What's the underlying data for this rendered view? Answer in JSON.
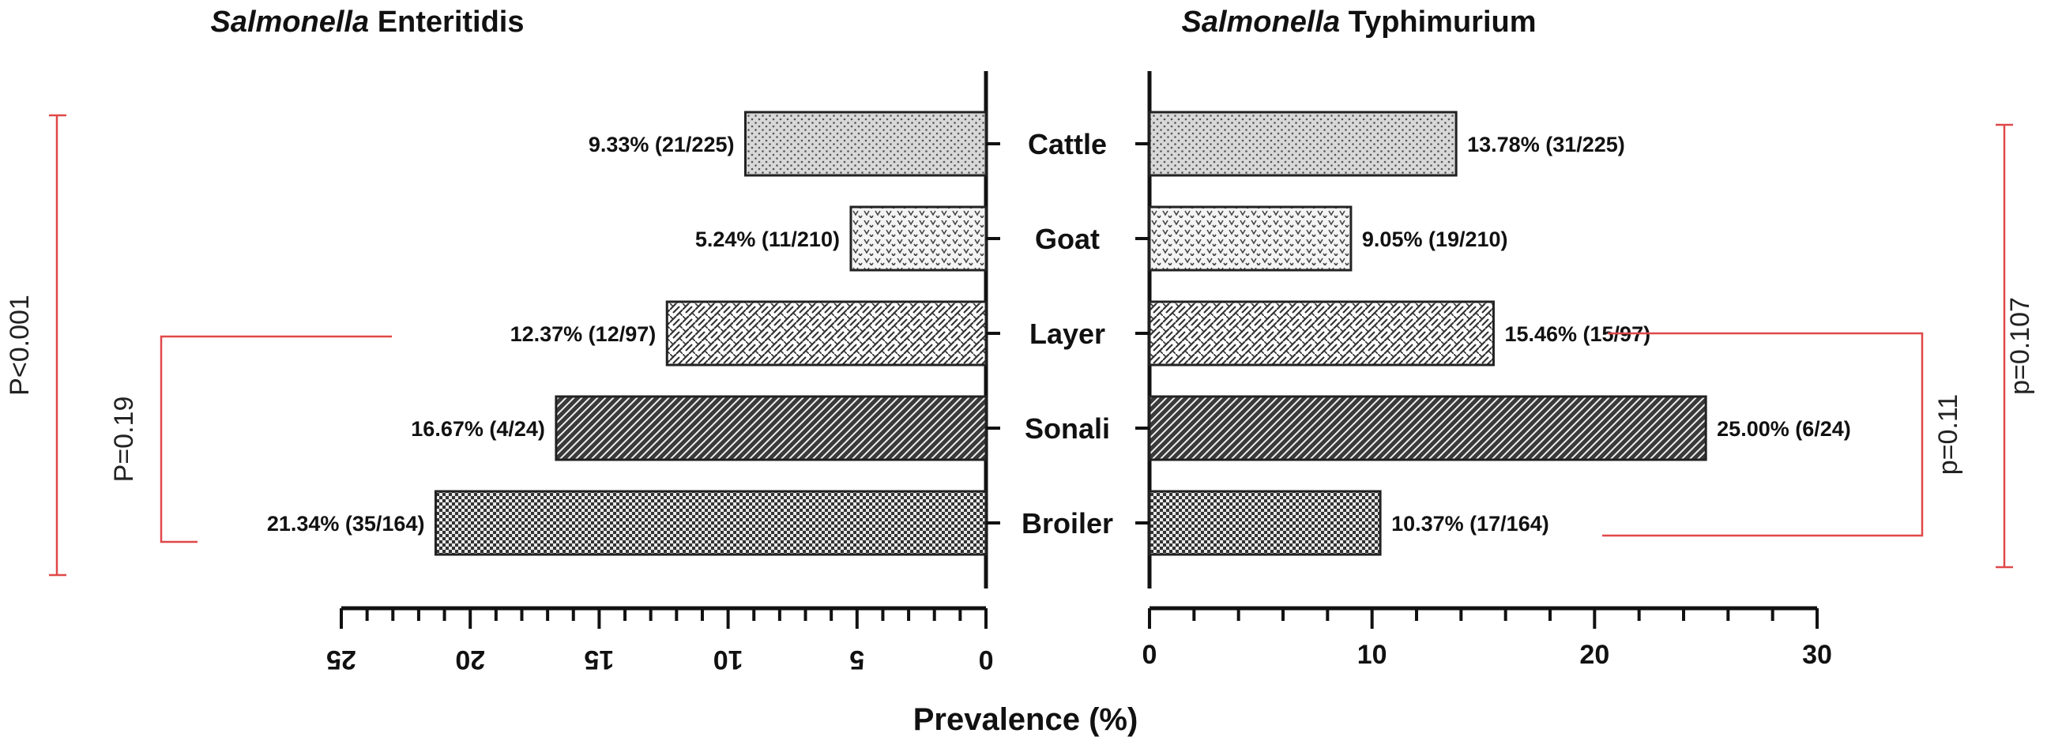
{
  "chart_data": {
    "type": "bar",
    "orientation": "horizontal-back-to-back",
    "xlabel": "Prevalence (%)",
    "categories": [
      "Cattle",
      "Goat",
      "Layer",
      "Sonali",
      "Broiler"
    ],
    "series": [
      {
        "name": "Salmonella Enteritidis",
        "title_italic": "Salmonella",
        "title_rest": "Enteritidis",
        "values": [
          9.33,
          5.24,
          12.37,
          16.67,
          21.34
        ],
        "labels": [
          "9.33% (21/225)",
          "5.24% (11/210)",
          "12.37% (12/97)",
          "16.67% (4/24)",
          "21.34% (35/164)"
        ],
        "xlim": [
          0,
          25
        ],
        "ticks": [
          "0",
          "5",
          "10",
          "15",
          "20",
          "25"
        ],
        "tick_values": [
          0,
          5,
          10,
          15,
          20,
          25
        ]
      },
      {
        "name": "Salmonella Typhimurium",
        "title_italic": "Salmonella",
        "title_rest": "Typhimurium",
        "values": [
          13.78,
          9.05,
          15.46,
          25.0,
          10.37
        ],
        "labels": [
          "13.78% (31/225)",
          "9.05% (19/210)",
          "15.46% (15/97)",
          "25.00% (6/24)",
          "10.37% (17/164)"
        ],
        "xlim": [
          0,
          30
        ],
        "ticks": [
          "0",
          "10",
          "20",
          "30"
        ],
        "tick_values": [
          0,
          10,
          20,
          30
        ]
      }
    ],
    "annotations": {
      "left_outer": "P<0.001",
      "left_inner": "P=0.19",
      "right_inner": "p=0.11",
      "right_outer": "p=0.107"
    }
  }
}
